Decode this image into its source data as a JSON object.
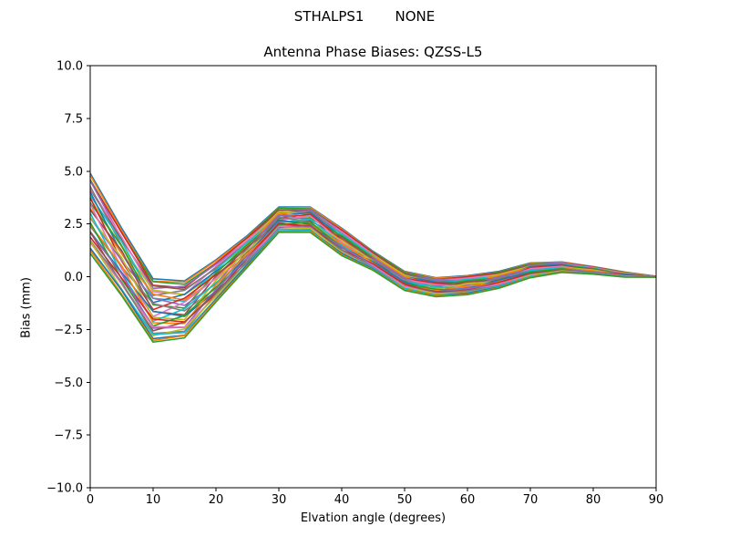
{
  "figure": {
    "suptitle_left": "STHALPS1",
    "suptitle_right": "NONE",
    "title": "Antenna Phase Biases: QZSS-L5",
    "xlabel": "Elvation angle (degrees)",
    "ylabel": "Bias (mm)"
  },
  "chart_data": {
    "type": "line",
    "title": "Antenna Phase Biases: QZSS-L5",
    "suptitle": "STHALPS1        NONE",
    "xlabel": "Elvation angle (degrees)",
    "ylabel": "Bias (mm)",
    "xlim": [
      0,
      90
    ],
    "ylim": [
      -10.0,
      10.0
    ],
    "xticks": [
      0,
      10,
      20,
      30,
      40,
      50,
      60,
      70,
      80,
      90
    ],
    "xtick_labels": [
      "0",
      "10",
      "20",
      "30",
      "40",
      "50",
      "60",
      "70",
      "80",
      "90"
    ],
    "yticks": [
      10.0,
      7.5,
      5.0,
      2.5,
      0.0,
      -2.5,
      -5.0,
      -7.5,
      -10.0
    ],
    "ytick_labels": [
      "10.0",
      "7.5",
      "5.0",
      "2.5",
      "0.0",
      "−2.5",
      "−5.0",
      "−7.5",
      "−10.0"
    ],
    "grid": false,
    "legend": "none",
    "x": [
      0,
      5,
      10,
      15,
      20,
      25,
      30,
      35,
      40,
      45,
      50,
      55,
      60,
      65,
      70,
      75,
      80,
      85,
      90
    ],
    "ensemble": {
      "description": "Dense bundle of antenna phase-bias curves (one per calibration/antenna), all following a damped oscillation vs elevation and converging to 0 mm at 90 deg",
      "n_lines": 33,
      "base": [
        3.0,
        0.7,
        -1.6,
        -1.55,
        -0.2,
        1.2,
        2.7,
        2.7,
        1.65,
        0.75,
        -0.2,
        -0.5,
        -0.4,
        -0.15,
        0.3,
        0.45,
        0.3,
        0.1,
        0.0
      ],
      "spread": [
        1.9,
        1.6,
        1.5,
        1.35,
        1.0,
        0.75,
        0.6,
        0.6,
        0.65,
        0.45,
        0.45,
        0.45,
        0.45,
        0.4,
        0.35,
        0.25,
        0.18,
        0.12,
        0.02
      ],
      "jitter": 0.3
    },
    "envelope_min": [
      1.1,
      -0.9,
      -3.1,
      -2.9,
      -1.2,
      0.45,
      2.1,
      2.1,
      1.0,
      0.3,
      -0.65,
      -0.95,
      -0.85,
      -0.55,
      -0.05,
      0.2,
      0.12,
      -0.02,
      -0.02
    ],
    "envelope_max": [
      4.9,
      2.3,
      -0.1,
      -0.2,
      0.8,
      1.95,
      3.3,
      3.3,
      2.3,
      1.2,
      0.25,
      -0.05,
      0.05,
      0.25,
      0.65,
      0.7,
      0.48,
      0.22,
      0.02
    ],
    "colors": [
      "#1f77b4",
      "#ff7f0e",
      "#2ca02c",
      "#d62728",
      "#9467bd",
      "#8c564b",
      "#e377c2",
      "#7f7f7f",
      "#bcbd22",
      "#17becf"
    ],
    "line_width": 1.6,
    "axis_color": "#000000",
    "background_color": "#ffffff"
  }
}
